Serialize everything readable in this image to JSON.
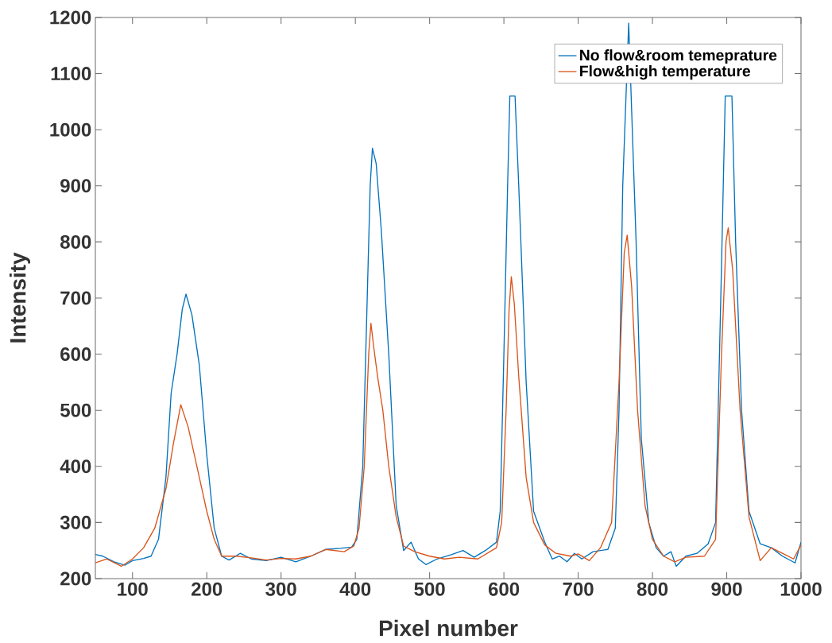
{
  "chart_data": {
    "type": "line",
    "xlabel": "Pixel number",
    "ylabel": "Intensity",
    "xlim": [
      50,
      1000
    ],
    "ylim": [
      200,
      1200
    ],
    "xticks": [
      100,
      200,
      300,
      400,
      500,
      600,
      700,
      800,
      900,
      1000
    ],
    "yticks": [
      200,
      300,
      400,
      500,
      600,
      700,
      800,
      900,
      1000,
      1100,
      1200
    ],
    "grid": false,
    "legend": "top right",
    "marker": "none",
    "line_style": "solid",
    "series": [
      {
        "name": "No flow&room temeprature",
        "color": "#0072bd",
        "x": [
          50,
          60,
          75,
          90,
          100,
          115,
          125,
          135,
          145,
          152,
          160,
          167,
          172,
          180,
          190,
          200,
          210,
          220,
          230,
          245,
          260,
          280,
          300,
          320,
          340,
          360,
          380,
          395,
          402,
          410,
          415,
          420,
          423,
          428,
          435,
          445,
          455,
          465,
          475,
          485,
          495,
          510,
          530,
          545,
          560,
          575,
          590,
          595,
          600,
          605,
          608,
          615,
          620,
          630,
          640,
          655,
          665,
          675,
          685,
          695,
          705,
          720,
          740,
          750,
          755,
          760,
          765,
          768,
          772,
          778,
          785,
          795,
          805,
          815,
          825,
          832,
          845,
          860,
          875,
          885,
          892,
          898,
          907,
          912,
          920,
          930,
          945,
          960,
          975,
          992,
          1000
        ],
        "values": [
          243,
          240,
          230,
          224,
          232,
          236,
          240,
          270,
          380,
          530,
          600,
          680,
          707,
          670,
          580,
          420,
          290,
          240,
          233,
          245,
          235,
          232,
          238,
          230,
          240,
          252,
          254,
          256,
          270,
          400,
          650,
          900,
          967,
          940,
          820,
          600,
          330,
          250,
          265,
          235,
          225,
          235,
          243,
          250,
          238,
          250,
          265,
          320,
          600,
          900,
          1060,
          1060,
          900,
          550,
          320,
          265,
          235,
          240,
          230,
          245,
          235,
          248,
          252,
          290,
          500,
          900,
          null,
          1190,
          null,
          800,
          450,
          300,
          255,
          240,
          248,
          222,
          240,
          245,
          262,
          300,
          700,
          1060,
          1060,
          800,
          500,
          320,
          262,
          255,
          240,
          228,
          265
        ]
      },
      {
        "name": "Flow&high temperature",
        "color": "#d95319",
        "x": [
          50,
          65,
          85,
          100,
          115,
          130,
          145,
          155,
          165,
          175,
          190,
          200,
          210,
          220,
          240,
          260,
          280,
          300,
          320,
          340,
          360,
          385,
          398,
          405,
          412,
          418,
          421,
          425,
          430,
          437,
          445,
          455,
          465,
          480,
          500,
          520,
          540,
          565,
          590,
          597,
          603,
          607,
          610,
          614,
          620,
          630,
          640,
          655,
          670,
          690,
          700,
          715,
          730,
          745,
          755,
          762,
          766,
          772,
          780,
          790,
          800,
          815,
          830,
          845,
          870,
          885,
          893,
          899,
          902,
          908,
          918,
          930,
          945,
          960,
          975,
          990,
          1000
        ],
        "values": [
          228,
          235,
          222,
          235,
          255,
          290,
          360,
          440,
          510,
          470,
          380,
          320,
          270,
          240,
          240,
          237,
          233,
          236,
          235,
          240,
          252,
          248,
          258,
          290,
          400,
          600,
          655,
          610,
          560,
          500,
          400,
          310,
          258,
          248,
          240,
          235,
          238,
          235,
          255,
          300,
          500,
          680,
          738,
          690,
          560,
          380,
          300,
          260,
          245,
          240,
          244,
          232,
          255,
          300,
          550,
          780,
          812,
          720,
          500,
          330,
          270,
          240,
          230,
          238,
          240,
          270,
          600,
          800,
          825,
          750,
          500,
          310,
          232,
          255,
          245,
          235,
          260
        ]
      }
    ]
  }
}
